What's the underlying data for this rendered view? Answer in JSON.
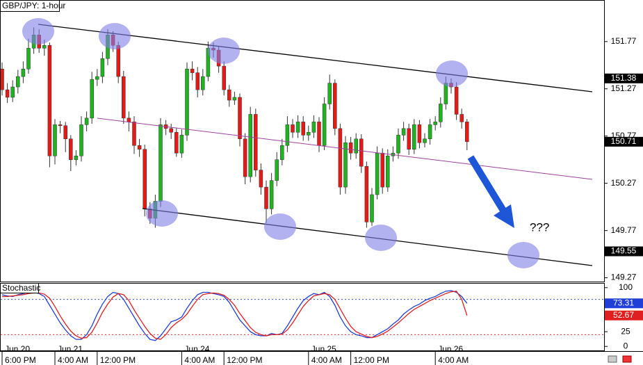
{
  "chart_data": [
    {
      "type": "candlestick",
      "title": "GBP/JPY: 1-hour",
      "categories": [
        "6:00 PM",
        null,
        null,
        null,
        null,
        null,
        null,
        null,
        null,
        null,
        "4:00 AM",
        null,
        null,
        null,
        null,
        null,
        null,
        null,
        "12:00 PM",
        null,
        null,
        null,
        null,
        null,
        null,
        null,
        null,
        null,
        null,
        null,
        null,
        null,
        null,
        null,
        "4:00 AM",
        null,
        null,
        null,
        null,
        null,
        null,
        null,
        "12:00 PM",
        null,
        null,
        null,
        null,
        null,
        null,
        null,
        null,
        null,
        null,
        null,
        null,
        null,
        null,
        null,
        "4:00 AM",
        null,
        null,
        null,
        null,
        null,
        null,
        null,
        "12:00 PM",
        null,
        null,
        null,
        null,
        null,
        null,
        null,
        null,
        null,
        null,
        null,
        null,
        null,
        null,
        null,
        "4:00 AM",
        null,
        null,
        null,
        null,
        null,
        null
      ],
      "dates": [
        "Jun 20",
        null,
        null,
        null,
        null,
        null,
        null,
        null,
        null,
        null,
        "Jun 21",
        null,
        null,
        null,
        null,
        null,
        null,
        null,
        null,
        null,
        null,
        null,
        null,
        null,
        null,
        null,
        null,
        null,
        null,
        null,
        null,
        null,
        null,
        null,
        "Jun 24",
        null,
        null,
        null,
        null,
        null,
        null,
        null,
        null,
        null,
        null,
        null,
        null,
        null,
        null,
        null,
        null,
        null,
        null,
        null,
        null,
        null,
        null,
        null,
        "Jun 25",
        null,
        null,
        null,
        null,
        null,
        null,
        null,
        null,
        null,
        null,
        null,
        null,
        null,
        null,
        null,
        null,
        null,
        null,
        null,
        null,
        null,
        null,
        null,
        "Jun 26",
        null,
        null,
        null,
        null,
        null,
        null
      ],
      "open": [
        151.48,
        151.26,
        151.18,
        151.29,
        151.4,
        151.48,
        151.7,
        151.84,
        151.7,
        151.73,
        150.56,
        150.89,
        150.88,
        150.74,
        150.52,
        150.56,
        150.89,
        150.96,
        151.37,
        151.4,
        151.59,
        151.84,
        151.73,
        151.4,
        150.96,
        150.92,
        150.67,
        150.63,
        150.0,
        149.9,
        150.08,
        150.89,
        150.85,
        150.81,
        150.59,
        150.78,
        151.48,
        151.44,
        151.26,
        151.4,
        151.7,
        151.68,
        151.51,
        151.26,
        151.15,
        151.18,
        150.74,
        150.34,
        151.0,
        150.41,
        150.23,
        150.0,
        150.3,
        150.52,
        150.67,
        150.89,
        150.81,
        150.92,
        150.78,
        150.81,
        150.92,
        150.67,
        151.11,
        151.33,
        150.85,
        150.23,
        150.7,
        150.59,
        150.74,
        150.45,
        149.86,
        150.15,
        150.59,
        150.23,
        150.56,
        150.59,
        150.78,
        150.85,
        150.63,
        150.89,
        150.7,
        150.74,
        150.89,
        150.92,
        151.11,
        151.33,
        151.29,
        151.0,
        150.92
      ],
      "high": [
        151.55,
        151.33,
        151.36,
        151.47,
        151.56,
        151.8,
        151.92,
        151.9,
        151.79,
        151.76,
        150.95,
        150.93,
        150.92,
        150.78,
        150.62,
        150.98,
        151.03,
        151.45,
        151.48,
        151.66,
        151.9,
        151.88,
        151.77,
        151.46,
        151.03,
        150.98,
        150.74,
        150.68,
        150.07,
        150.15,
        150.96,
        150.94,
        150.9,
        150.86,
        150.84,
        151.55,
        151.56,
        151.5,
        151.48,
        151.77,
        151.76,
        151.72,
        151.56,
        151.31,
        151.24,
        151.22,
        150.8,
        151.08,
        151.06,
        150.48,
        150.3,
        150.38,
        150.6,
        150.74,
        150.98,
        150.95,
        150.99,
        150.98,
        150.88,
        150.99,
        150.97,
        151.18,
        151.42,
        151.37,
        150.9,
        150.77,
        150.76,
        150.8,
        150.79,
        150.5,
        150.22,
        150.66,
        150.64,
        150.63,
        150.66,
        150.85,
        150.92,
        150.9,
        150.95,
        150.94,
        150.8,
        150.95,
        150.98,
        151.18,
        151.4,
        151.38,
        151.34,
        151.06,
        150.95
      ],
      "low": [
        151.2,
        151.12,
        151.13,
        151.22,
        151.33,
        151.43,
        151.64,
        151.65,
        151.62,
        150.44,
        150.47,
        150.8,
        150.6,
        150.4,
        150.46,
        150.5,
        150.82,
        150.9,
        151.3,
        151.33,
        151.52,
        151.66,
        151.33,
        150.9,
        150.82,
        150.58,
        150.55,
        149.92,
        149.84,
        149.8,
        150.02,
        150.78,
        150.74,
        150.55,
        150.54,
        150.72,
        151.36,
        151.18,
        151.2,
        151.35,
        151.6,
        151.44,
        151.2,
        151.08,
        151.1,
        150.66,
        150.26,
        150.28,
        150.34,
        150.15,
        149.85,
        149.94,
        150.24,
        150.46,
        150.6,
        150.75,
        150.75,
        150.72,
        150.72,
        150.75,
        150.6,
        150.62,
        151.05,
        150.78,
        150.15,
        150.16,
        150.52,
        150.53,
        150.38,
        149.8,
        149.82,
        150.1,
        150.16,
        150.18,
        150.5,
        150.53,
        150.72,
        150.57,
        150.58,
        150.64,
        150.65,
        150.68,
        150.83,
        150.86,
        151.05,
        151.22,
        150.94,
        150.85,
        150.62
      ],
      "close": [
        151.26,
        151.18,
        151.29,
        151.4,
        151.48,
        151.7,
        151.84,
        151.7,
        151.73,
        150.56,
        150.89,
        150.88,
        150.74,
        150.52,
        150.56,
        150.89,
        150.96,
        151.37,
        151.4,
        151.59,
        151.84,
        151.73,
        151.4,
        150.96,
        150.92,
        150.67,
        150.63,
        150.0,
        149.9,
        150.08,
        150.89,
        150.85,
        150.81,
        150.59,
        150.78,
        151.48,
        151.44,
        151.26,
        151.4,
        151.7,
        151.68,
        151.51,
        151.26,
        151.15,
        151.18,
        150.74,
        150.34,
        151.0,
        150.41,
        150.23,
        150.0,
        150.3,
        150.52,
        150.67,
        150.89,
        150.81,
        150.92,
        150.78,
        150.81,
        150.92,
        150.67,
        151.11,
        151.33,
        150.85,
        150.23,
        150.7,
        150.59,
        150.74,
        150.45,
        149.86,
        150.15,
        150.59,
        150.23,
        150.56,
        150.59,
        150.78,
        150.85,
        150.63,
        150.89,
        150.7,
        150.74,
        150.89,
        150.92,
        151.11,
        151.33,
        151.29,
        151.0,
        150.92,
        150.71
      ],
      "up_color": "#1fb31f",
      "down_color": "#e61919",
      "ylim": [
        149.23,
        152.21
      ],
      "yticks": [
        151.77,
        151.27,
        150.77,
        150.27,
        149.77,
        149.27
      ],
      "price_markers": [
        151.38,
        150.71,
        149.55
      ],
      "annotations": [
        "???"
      ]
    },
    {
      "type": "line",
      "title": "Stochastic",
      "series": [
        {
          "color": "#1f3fd6",
          "values": [
            88,
            86,
            85,
            88,
            90,
            92,
            92,
            90,
            85,
            70,
            55,
            40,
            28,
            18,
            12,
            12,
            20,
            35,
            55,
            72,
            85,
            92,
            90,
            80,
            65,
            50,
            35,
            22,
            12,
            10,
            18,
            30,
            42,
            45,
            50,
            65,
            78,
            88,
            92,
            92,
            90,
            88,
            85,
            75,
            60,
            45,
            35,
            25,
            20,
            18,
            18,
            22,
            20,
            22,
            35,
            50,
            65,
            78,
            85,
            90,
            88,
            92,
            85,
            70,
            50,
            35,
            25,
            20,
            18,
            15,
            15,
            20,
            25,
            30,
            38,
            45,
            55,
            62,
            68,
            72,
            78,
            82,
            85,
            90,
            94,
            95,
            92,
            85,
            73.31
          ]
        },
        {
          "color": "#e02020",
          "values": [
            85,
            85,
            86,
            87,
            88,
            90,
            91,
            91,
            89,
            82,
            68,
            52,
            38,
            26,
            18,
            14,
            15,
            24,
            40,
            58,
            72,
            84,
            90,
            88,
            78,
            62,
            48,
            34,
            22,
            14,
            12,
            20,
            32,
            40,
            46,
            55,
            68,
            80,
            88,
            90,
            91,
            90,
            87,
            80,
            70,
            56,
            44,
            32,
            24,
            20,
            18,
            20,
            20,
            21,
            28,
            40,
            54,
            68,
            78,
            86,
            88,
            90,
            88,
            80,
            64,
            48,
            34,
            25,
            21,
            17,
            15,
            17,
            21,
            26,
            33,
            40,
            48,
            56,
            63,
            68,
            73,
            78,
            82,
            86,
            90,
            93,
            94,
            80,
            52.67
          ]
        }
      ],
      "ylim": [
        -8,
        108
      ],
      "yticks": [
        100,
        25,
        0
      ],
      "levels": [
        {
          "value": 80,
          "color": "#3050d0"
        },
        {
          "value": 20,
          "color": "#e03030"
        }
      ]
    }
  ]
}
